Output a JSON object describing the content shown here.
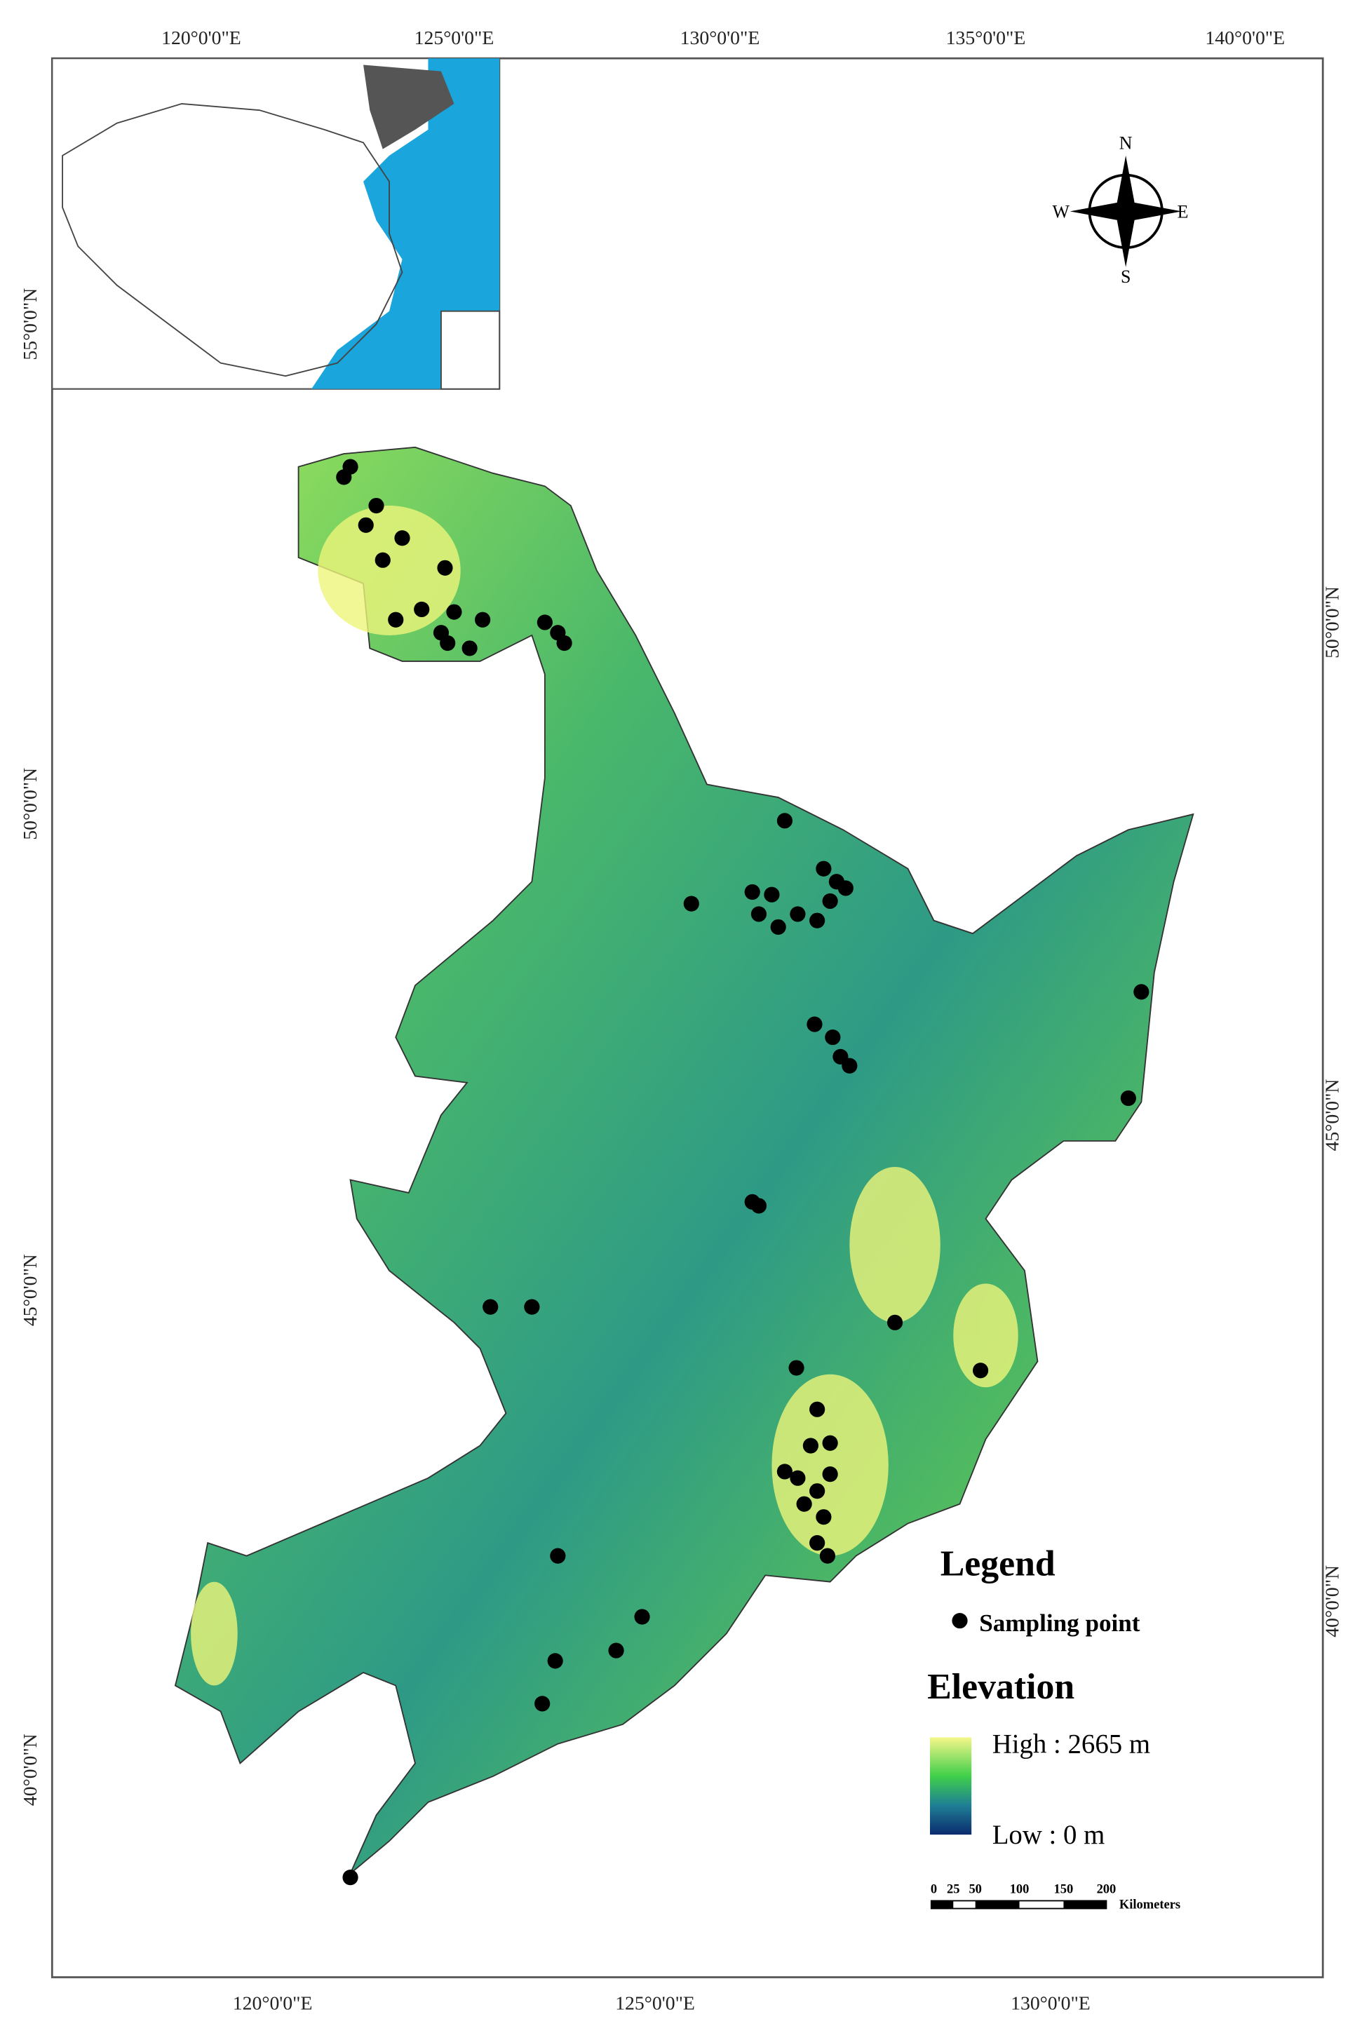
{
  "axes": {
    "top": [
      "120°0'0\"E",
      "125°0'0\"E",
      "130°0'0\"E",
      "135°0'0\"E",
      "140°0'0\"E"
    ],
    "bottom": [
      "120°0'0\"E",
      "125°0'0\"E",
      "130°0'0\"E"
    ],
    "left": [
      "55°0'0\"N",
      "50°0'0\"N",
      "45°0'0\"N",
      "40°0'0\"N"
    ],
    "right": [
      "50°0'0\"N",
      "45°0'0\"N",
      "40°0'0\"N"
    ]
  },
  "compass": {
    "north": "N",
    "south": "S",
    "west": "W",
    "east": "E"
  },
  "legend": {
    "title": "Legend",
    "sampling": "Sampling point",
    "elevation": "Elevation",
    "high": "High : 2665 m",
    "low": "Low : 0 m"
  },
  "scale_bar": {
    "labels": [
      "0",
      "25",
      "50",
      "100",
      "150",
      "200"
    ],
    "unit": "Kilometers"
  }
}
